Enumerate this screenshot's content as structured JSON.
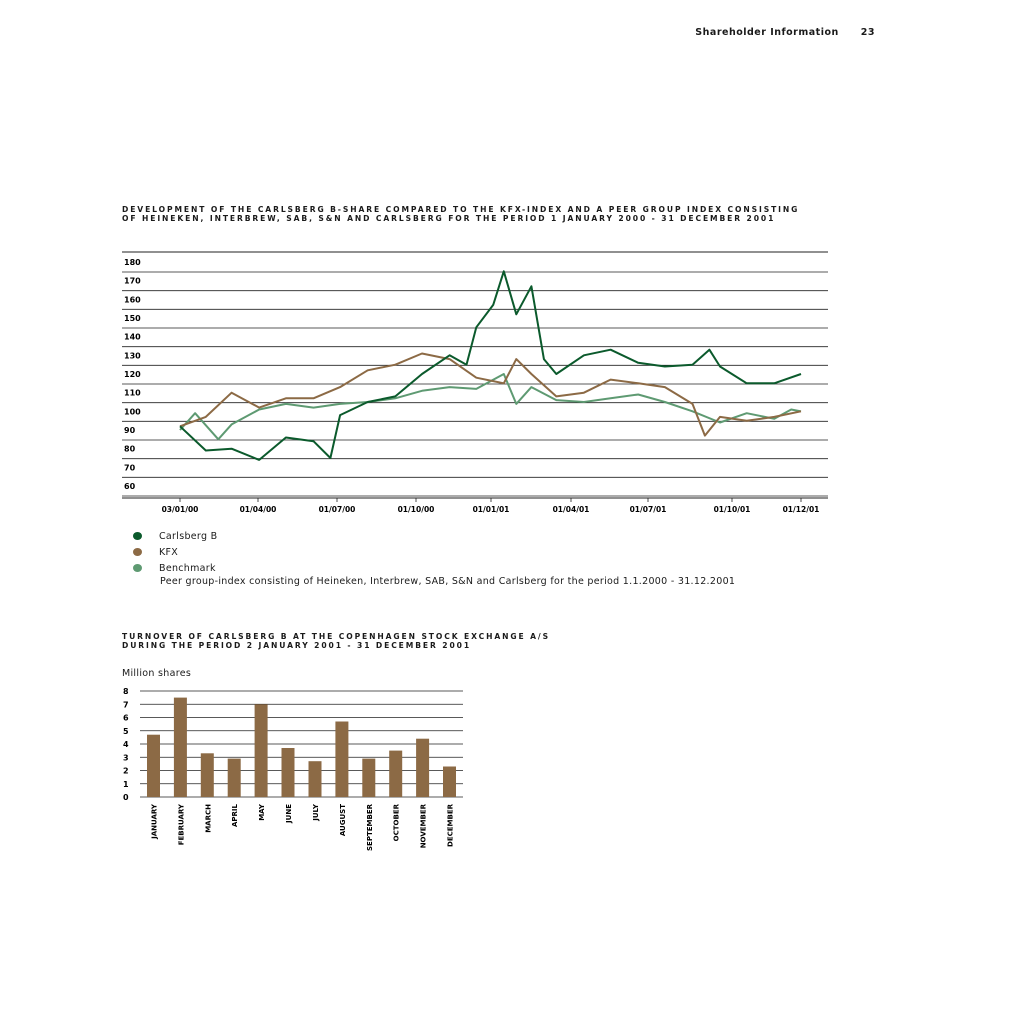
{
  "header": {
    "section": "Shareholder Information",
    "page": "23"
  },
  "chart1_title": [
    "Development of the Carlsberg B-share compared to the KFX-index and a peer group index consisting",
    "of Heineken, Interbrew, SAB, S&N and Carlsberg for the period 1 January 2000 - 31 December 2001"
  ],
  "legend": [
    {
      "label": "Carlsberg B",
      "color": "#0b5a2c"
    },
    {
      "label": "KFX",
      "color": "#8c6a45"
    },
    {
      "label": "Benchmark",
      "color": "#5e9a72"
    }
  ],
  "legend_note": "Peer group-index consisting of Heineken, Interbrew, SAB, S&N and Carlsberg for the period 1.1.2000 - 31.12.2001",
  "chart2_title": [
    "Turnover of Carlsberg B at the Copenhagen Stock Exchange A/S",
    "during the period 2 January 2001 - 31 December 2001"
  ],
  "chart2_unit": "Million shares",
  "chart_data": [
    {
      "type": "line",
      "ylim": [
        60,
        180
      ],
      "yticks": [
        60,
        70,
        80,
        90,
        100,
        110,
        120,
        130,
        140,
        150,
        160,
        170,
        180
      ],
      "xlim": [
        "2000-01-03",
        "2001-12-01"
      ],
      "xticks": [
        "03/01/00",
        "01/04/00",
        "01/07/00",
        "01/10/00",
        "01/01/01",
        "01/04/01",
        "01/07/01",
        "01/10/01",
        "01/12/01"
      ],
      "grid": true,
      "series": [
        {
          "name": "Carlsberg B",
          "color": "#0b5a2c",
          "x": [
            "2000-01-03",
            "2000-02-01",
            "2000-03-01",
            "2000-04-01",
            "2000-05-01",
            "2000-06-01",
            "2000-06-20",
            "2000-07-01",
            "2000-08-01",
            "2000-09-01",
            "2000-10-01",
            "2000-11-01",
            "2000-11-20",
            "2000-12-01",
            "2000-12-20",
            "2001-01-01",
            "2001-01-15",
            "2001-02-01",
            "2001-02-15",
            "2001-03-01",
            "2001-04-01",
            "2001-05-01",
            "2001-06-01",
            "2001-07-01",
            "2001-08-01",
            "2001-08-20",
            "2001-09-01",
            "2001-10-01",
            "2001-11-01",
            "2001-12-01"
          ],
          "values": [
            92,
            79,
            80,
            74,
            86,
            84,
            75,
            98,
            105,
            108,
            120,
            130,
            125,
            145,
            157,
            175,
            152,
            167,
            128,
            120,
            130,
            133,
            126,
            124,
            125,
            133,
            124,
            115,
            115,
            120
          ]
        },
        {
          "name": "KFX",
          "color": "#8c6a45",
          "x": [
            "2000-01-03",
            "2000-02-01",
            "2000-03-01",
            "2000-04-01",
            "2000-05-01",
            "2000-06-01",
            "2000-07-01",
            "2000-08-01",
            "2000-09-01",
            "2000-10-01",
            "2000-11-01",
            "2000-12-01",
            "2001-01-01",
            "2001-01-15",
            "2001-02-01",
            "2001-03-01",
            "2001-04-01",
            "2001-05-01",
            "2001-06-01",
            "2001-07-01",
            "2001-08-01",
            "2001-08-15",
            "2001-09-01",
            "2001-10-01",
            "2001-11-01",
            "2001-12-01"
          ],
          "values": [
            92,
            97,
            110,
            102,
            107,
            107,
            113,
            122,
            125,
            131,
            128,
            118,
            115,
            128,
            120,
            108,
            110,
            117,
            115,
            113,
            104,
            87,
            97,
            95,
            97,
            100
          ]
        },
        {
          "name": "Benchmark",
          "color": "#5e9a72",
          "x": [
            "2000-01-03",
            "2000-01-20",
            "2000-02-15",
            "2000-03-01",
            "2000-04-01",
            "2000-05-01",
            "2000-06-01",
            "2000-07-01",
            "2000-08-01",
            "2000-09-01",
            "2000-10-01",
            "2000-11-01",
            "2000-12-01",
            "2001-01-01",
            "2001-01-15",
            "2001-02-01",
            "2001-03-01",
            "2001-04-01",
            "2001-05-01",
            "2001-06-01",
            "2001-07-01",
            "2001-08-01",
            "2001-09-01",
            "2001-10-01",
            "2001-11-01",
            "2001-11-20",
            "2001-12-01"
          ],
          "values": [
            90,
            99,
            85,
            93,
            101,
            104,
            102,
            104,
            105,
            107,
            111,
            113,
            112,
            120,
            104,
            113,
            106,
            105,
            107,
            109,
            105,
            100,
            94,
            99,
            96,
            101,
            100
          ]
        }
      ]
    },
    {
      "type": "bar",
      "categories": [
        "JANUARY",
        "FEBRUARY",
        "MARCH",
        "APRIL",
        "MAY",
        "JUNE",
        "JULY",
        "AUGUST",
        "SEPTEMBER",
        "OCTOBER",
        "NOVEMBER",
        "DECEMBER"
      ],
      "values": [
        4.7,
        7.5,
        3.3,
        2.9,
        7.0,
        3.7,
        2.7,
        5.7,
        2.9,
        3.5,
        4.4,
        2.3
      ],
      "ylim": [
        0,
        8
      ],
      "yticks": [
        0,
        1,
        2,
        3,
        4,
        5,
        6,
        7,
        8
      ],
      "color": "#8c6a45",
      "grid": true
    }
  ]
}
